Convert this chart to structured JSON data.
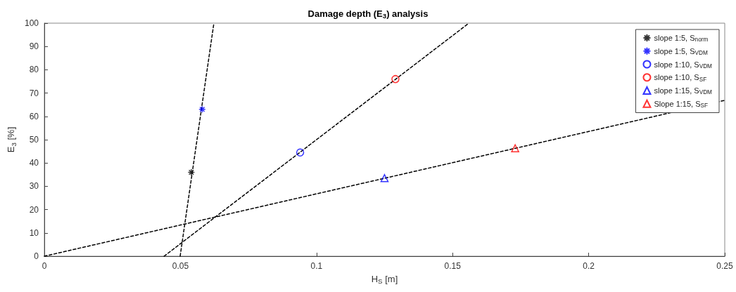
{
  "chart_data": {
    "type": "scatter",
    "title": "Damage depth (E$_{3}$) analysis",
    "xlabel": "H$_{S}$ [m]",
    "ylabel": "E$_{3}$ [%]",
    "xlim": [
      0,
      0.25
    ],
    "xticks": [
      0,
      0.05,
      0.1,
      0.15,
      0.2,
      0.25
    ],
    "ylim": [
      0,
      100
    ],
    "yticks": [
      0,
      10,
      20,
      30,
      40,
      50,
      60,
      70,
      80,
      90,
      100
    ],
    "grid": false,
    "legend": "top right",
    "series": [
      {
        "name": "slope 1:5, S$_{norm}$",
        "color": "#000000",
        "marker": "cross",
        "x": [
          0.054
        ],
        "values": [
          36
        ]
      },
      {
        "name": "slope 1:5, S$_{VDM}$",
        "color": "#0000ff",
        "marker": "cross",
        "x": [
          0.058
        ],
        "values": [
          63
        ]
      },
      {
        "name": "slope 1:10, S$_{VDM}$",
        "color": "#0000ff",
        "marker": "circle",
        "x": [
          0.094
        ],
        "values": [
          44.5
        ]
      },
      {
        "name": "slope 1:10, S$_{SF}$",
        "color": "#ff0000",
        "marker": "circle",
        "x": [
          0.129
        ],
        "values": [
          76
        ]
      },
      {
        "name": "slope 1:15, S$_{VDM}$",
        "color": "#0000ff",
        "marker": "triangle",
        "x": [
          0.125
        ],
        "values": [
          33.5
        ]
      },
      {
        "name": "Slope 1:15, S$_{SF}$",
        "color": "#ff0000",
        "marker": "triangle",
        "x": [
          0.173
        ],
        "values": [
          46.3
        ]
      },
      {
        "type": "line",
        "color": "#000000",
        "marker": "none",
        "line_style": "dashed",
        "x": [
          0.0499,
          0.0623
        ],
        "values": [
          0,
          100
        ]
      },
      {
        "type": "line",
        "color": "#000000",
        "marker": "none",
        "line_style": "dashed",
        "x": [
          0.044,
          0.156
        ],
        "values": [
          0,
          100
        ]
      },
      {
        "type": "line",
        "color": "#000000",
        "marker": "none",
        "line_style": "dashed",
        "x": [
          0,
          0.25
        ],
        "values": [
          0,
          66.9
        ]
      }
    ]
  }
}
